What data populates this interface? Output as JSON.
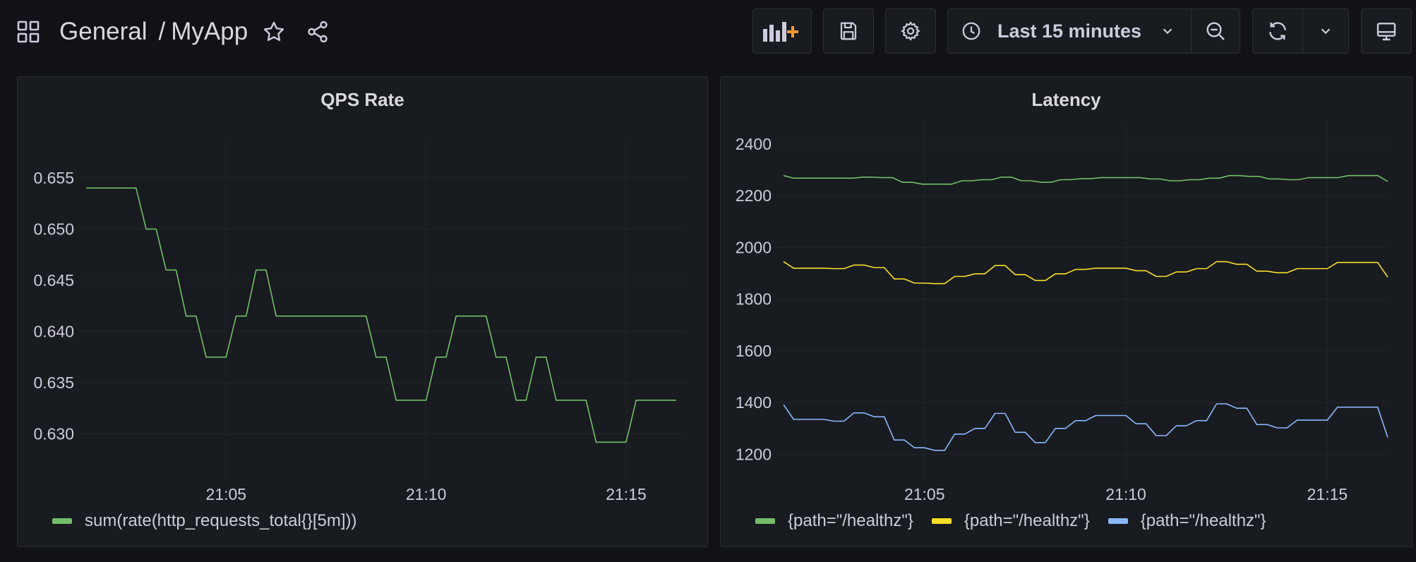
{
  "header": {
    "folder": "General",
    "separator": "/",
    "dashboard": "MyApp",
    "time_range": "Last 15 minutes"
  },
  "icons": [
    "apps-icon",
    "star-icon",
    "share-icon",
    "add-panel-icon",
    "save-icon",
    "gear-icon",
    "clock-icon",
    "chevron-down-icon",
    "zoom-out-icon",
    "refresh-icon",
    "tv-icon"
  ],
  "colors": {
    "green": "#73bf69",
    "yellow": "#fade2a",
    "blue": "#8ab8ff",
    "background": "#111217",
    "panel": "#181b1f"
  },
  "panels": [
    {
      "title": "QPS Rate"
    },
    {
      "title": "Latency"
    }
  ],
  "chart_data": [
    {
      "type": "line",
      "title": "QPS Rate",
      "x_ticks": [
        "21:05",
        "21:10",
        "21:15"
      ],
      "y_ticks": [
        "0.630",
        "0.635",
        "0.640",
        "0.645",
        "0.650",
        "0.655"
      ],
      "ylim": [
        0.6255,
        0.6565
      ],
      "xlim": [
        "21:01:30",
        "21:16:30"
      ],
      "grid": true,
      "legend_position": "bottom-left",
      "series": [
        {
          "name": "sum(rate(http_requests_total{}[5m]))",
          "color": "#73bf69",
          "x": [
            "21:01:30",
            "21:02:45",
            "21:03:00",
            "21:03:15",
            "21:03:30",
            "21:03:45",
            "21:04:00",
            "21:04:15",
            "21:04:30",
            "21:04:45",
            "21:05:00",
            "21:05:15",
            "21:05:30",
            "21:05:45",
            "21:06:00",
            "21:06:15",
            "21:08:30",
            "21:08:45",
            "21:09:00",
            "21:09:15",
            "21:10:00",
            "21:10:15",
            "21:10:30",
            "21:10:45",
            "21:11:30",
            "21:11:45",
            "21:12:00",
            "21:12:15",
            "21:12:30",
            "21:12:45",
            "21:13:00",
            "21:13:15",
            "21:14:00",
            "21:14:15",
            "21:15:00",
            "21:15:15",
            "21:16:15"
          ],
          "values": [
            0.654,
            0.654,
            0.65,
            0.65,
            0.646,
            0.646,
            0.6415,
            0.6415,
            0.6375,
            0.6375,
            0.6375,
            0.6415,
            0.6415,
            0.646,
            0.646,
            0.6415,
            0.6415,
            0.6375,
            0.6375,
            0.6333,
            0.6333,
            0.6375,
            0.6375,
            0.6415,
            0.6415,
            0.6375,
            0.6375,
            0.6333,
            0.6333,
            0.6375,
            0.6375,
            0.6333,
            0.6333,
            0.6292,
            0.6292,
            0.6333,
            0.6333
          ]
        }
      ]
    },
    {
      "type": "line",
      "title": "Latency",
      "x_ticks": [
        "21:05",
        "21:10",
        "21:15"
      ],
      "y_ticks": [
        "1200",
        "1400",
        "1600",
        "1800",
        "2000",
        "2200",
        "2400"
      ],
      "ylim": [
        1100,
        2400
      ],
      "xlim": [
        "21:01:30",
        "21:16:30"
      ],
      "grid": true,
      "legend_position": "bottom-left",
      "series": [
        {
          "name": "{path=\"/healthz\"}",
          "color": "#73bf69",
          "values": [
            2278,
            2268,
            2268,
            2268,
            2268,
            2268,
            2268,
            2268,
            2272,
            2272,
            2270,
            2270,
            2252,
            2252,
            2245,
            2245,
            2245,
            2245,
            2258,
            2258,
            2262,
            2262,
            2272,
            2272,
            2258,
            2258,
            2252,
            2252,
            2262,
            2262,
            2266,
            2266,
            2270,
            2270,
            2270,
            2270,
            2270,
            2265,
            2265,
            2258,
            2258,
            2262,
            2262,
            2268,
            2268,
            2278,
            2278,
            2275,
            2275,
            2265,
            2265,
            2262,
            2262,
            2270,
            2270,
            2270,
            2270,
            2278,
            2278,
            2278,
            2278,
            2255
          ]
        },
        {
          "name": "{path=\"/healthz\"}",
          "color": "#fade2a",
          "values": [
            1945,
            1920,
            1920,
            1920,
            1920,
            1918,
            1918,
            1932,
            1932,
            1922,
            1922,
            1878,
            1878,
            1862,
            1862,
            1860,
            1860,
            1888,
            1888,
            1898,
            1898,
            1930,
            1930,
            1895,
            1895,
            1872,
            1872,
            1898,
            1898,
            1915,
            1915,
            1920,
            1920,
            1920,
            1920,
            1910,
            1910,
            1888,
            1888,
            1905,
            1905,
            1918,
            1918,
            1945,
            1945,
            1935,
            1935,
            1908,
            1908,
            1902,
            1902,
            1918,
            1918,
            1918,
            1918,
            1942,
            1942,
            1942,
            1942,
            1942,
            1885
          ]
        },
        {
          "name": "{path=\"/healthz\"}",
          "color": "#8ab8ff",
          "values": [
            1392,
            1335,
            1335,
            1335,
            1335,
            1328,
            1328,
            1360,
            1360,
            1345,
            1345,
            1255,
            1255,
            1225,
            1225,
            1215,
            1215,
            1278,
            1278,
            1300,
            1300,
            1358,
            1358,
            1285,
            1285,
            1245,
            1245,
            1300,
            1300,
            1330,
            1330,
            1350,
            1350,
            1350,
            1350,
            1318,
            1318,
            1272,
            1272,
            1310,
            1310,
            1330,
            1330,
            1395,
            1395,
            1378,
            1378,
            1315,
            1315,
            1302,
            1302,
            1332,
            1332,
            1332,
            1332,
            1382,
            1382,
            1382,
            1382,
            1382,
            1265
          ]
        }
      ]
    }
  ]
}
